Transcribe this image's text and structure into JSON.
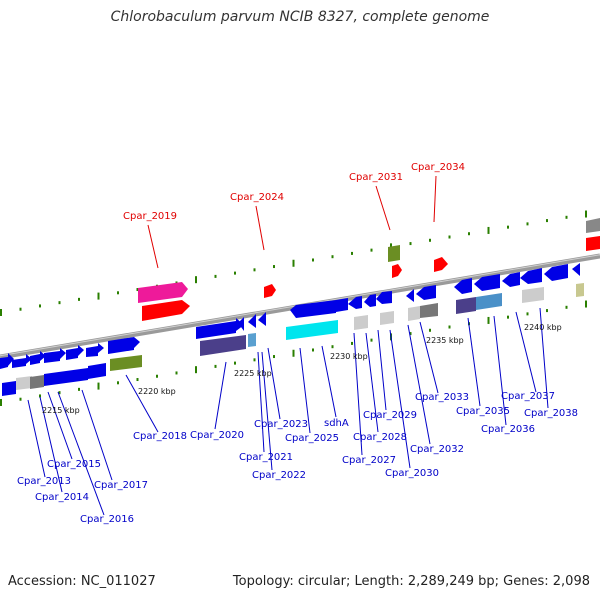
{
  "header": {
    "title": "Chlorobaculum parvum NCIB 8327, complete genome"
  },
  "footer": {
    "accession": "Accession: NC_011027",
    "topology": "Topology: circular; Length: 2,289,249 bp; Genes: 2,098"
  },
  "colors": {
    "cds": "#0000e8",
    "feature_gene": "#0000c8",
    "gene_label_red": "#e00000",
    "backbone": "#999999",
    "tick": "#2a7f00"
  },
  "scale_labels": [
    "2215 kbp",
    "2220 kbp",
    "2225 kbp",
    "2230 kbp",
    "2235 kbp",
    "2240 kbp"
  ],
  "gene_labels_red": [
    "Cpar_2019",
    "Cpar_2024",
    "Cpar_2031",
    "Cpar_2034"
  ],
  "gene_labels_blue": [
    "Cpar_2013",
    "Cpar_2014",
    "Cpar_2015",
    "Cpar_2016",
    "Cpar_2017",
    "Cpar_2018",
    "Cpar_2020",
    "Cpar_2021",
    "Cpar_2022",
    "Cpar_2023",
    "Cpar_2025",
    "sdhA",
    "Cpar_2027",
    "Cpar_2028",
    "Cpar_2029",
    "Cpar_2030",
    "Cpar_2032",
    "Cpar_2033",
    "Cpar_2035",
    "Cpar_2036",
    "Cpar_2037",
    "Cpar_2038"
  ]
}
